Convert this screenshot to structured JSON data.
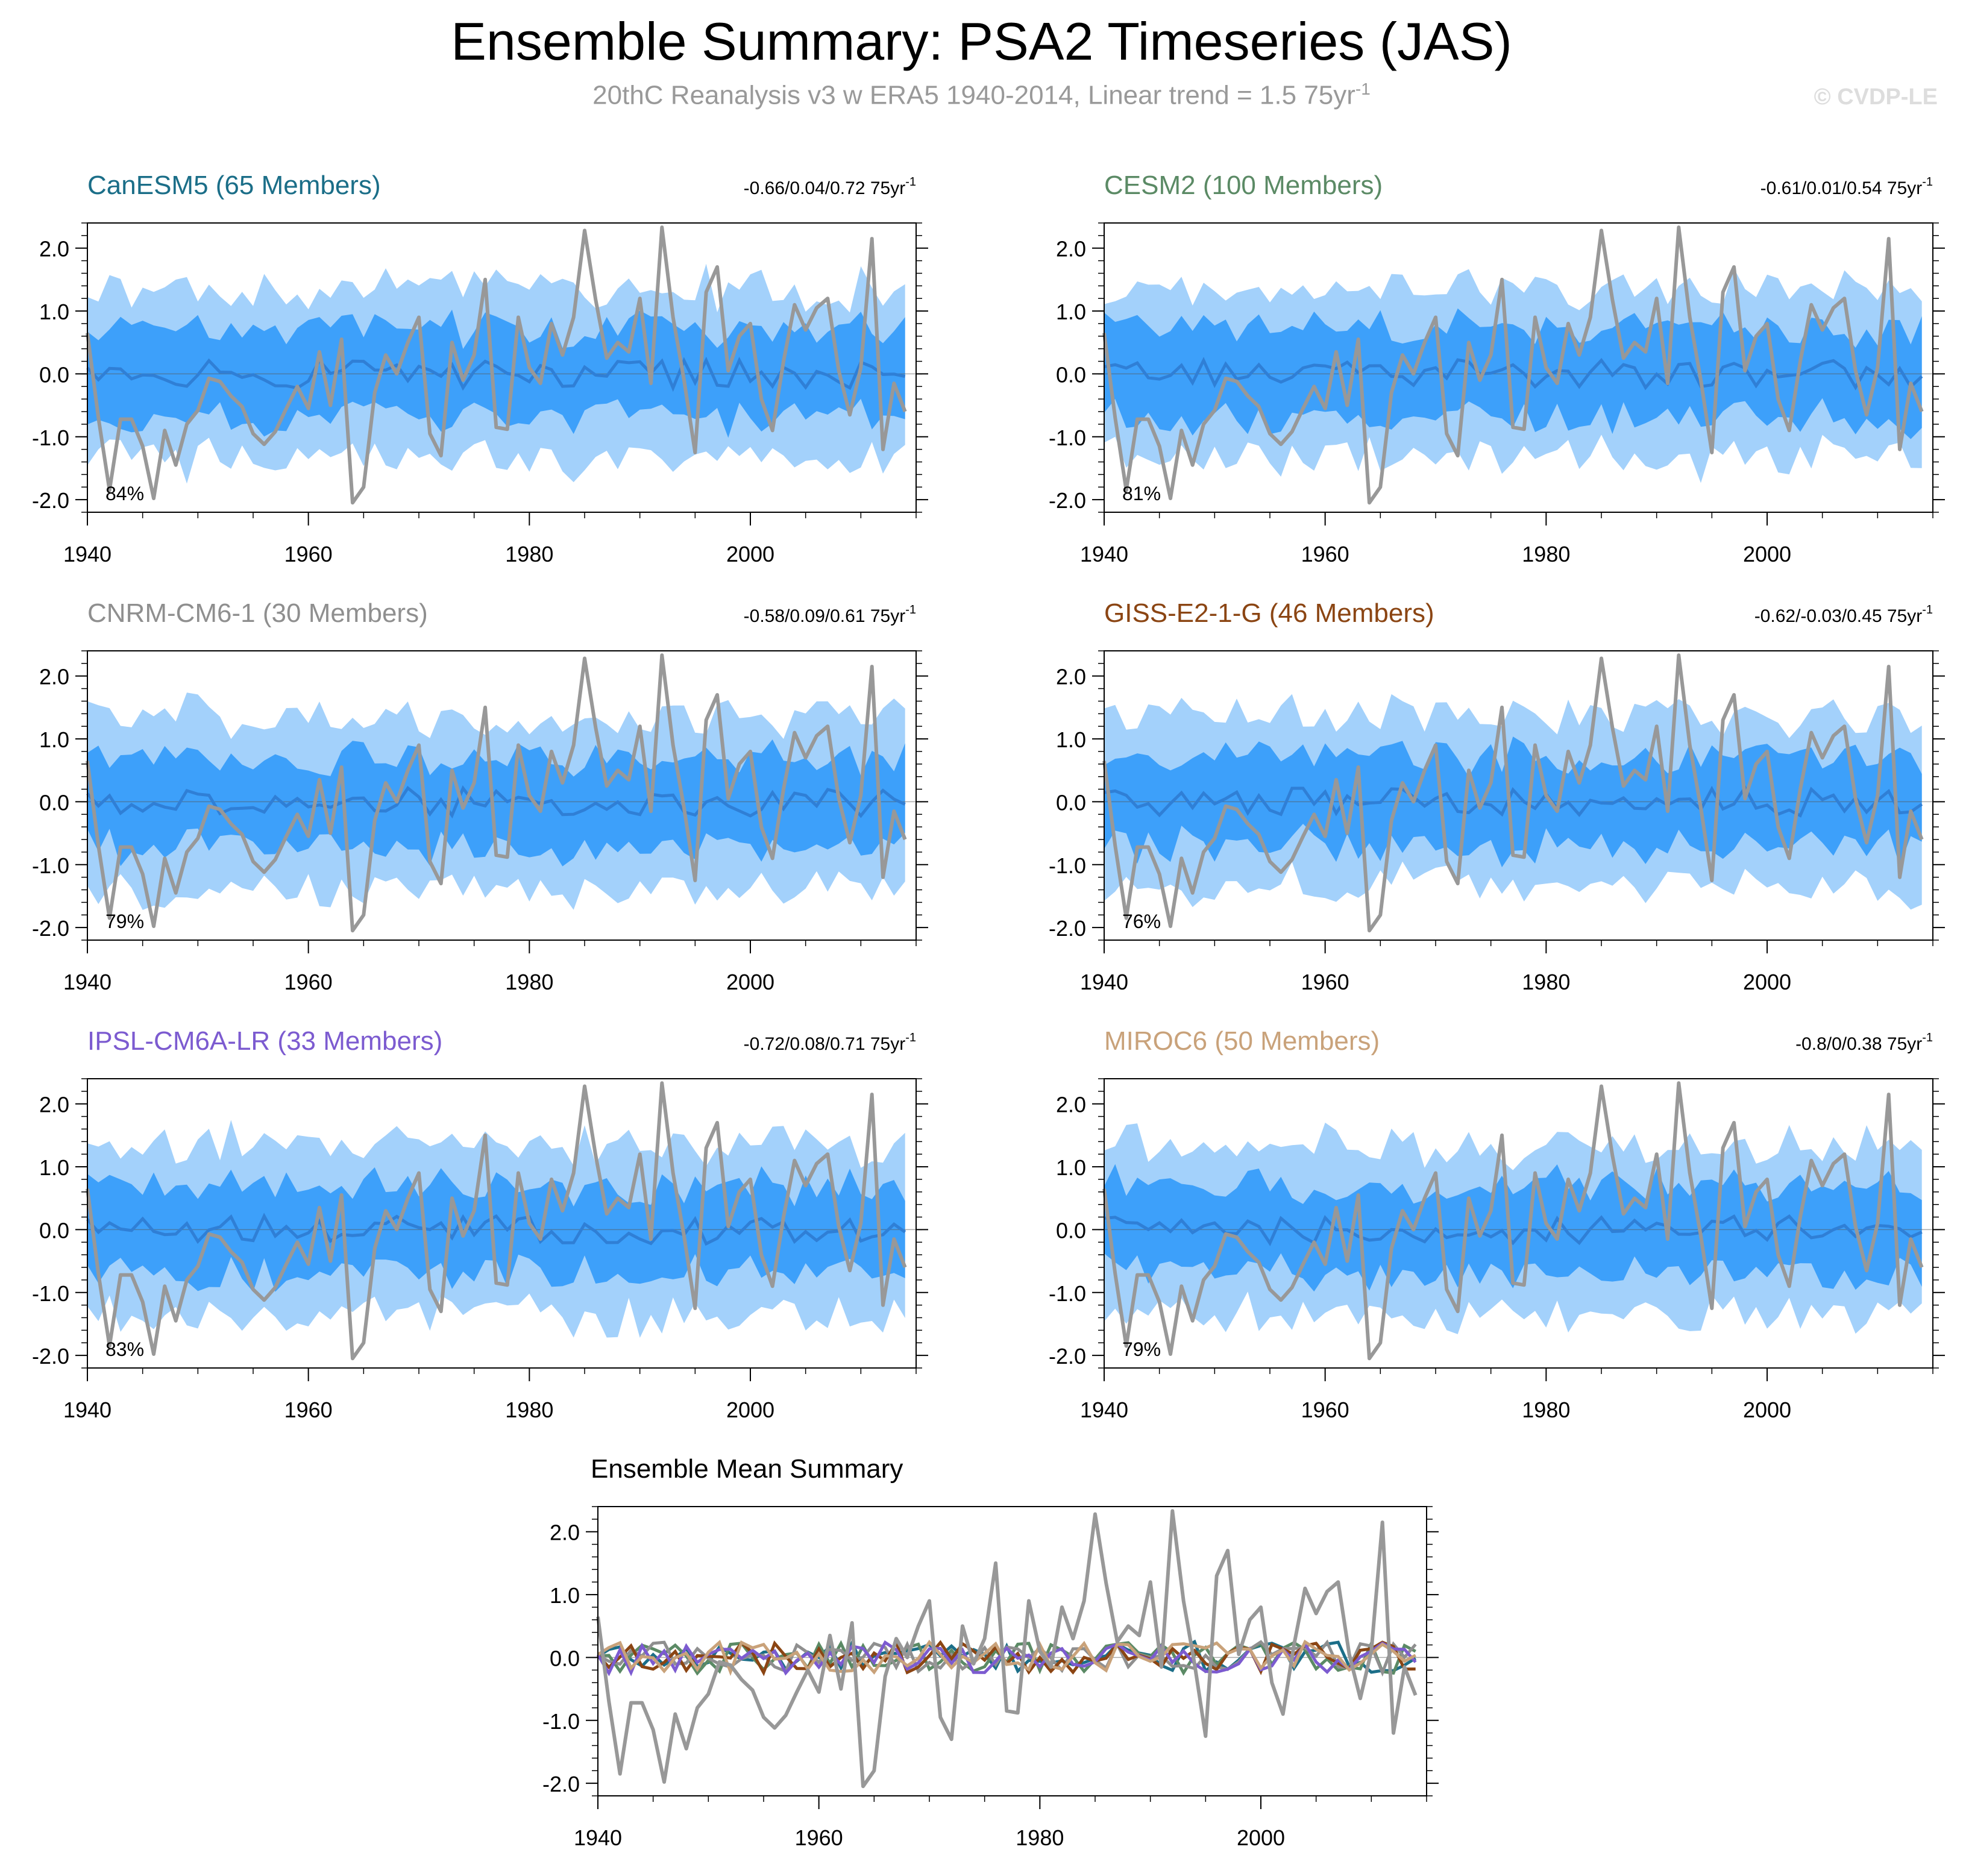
{
  "page": {
    "title": "Ensemble Summary: PSA2 Timeseries (JAS)",
    "subtitle_main": "20thC Reanalysis v3 w ERA5 1940-2014, Linear trend = 1.5 75yr",
    "subtitle_sup": "-1",
    "copyright": "© CVDP-LE"
  },
  "colors": {
    "outer_band": "#a3d1fb",
    "inner_band": "#3da0fa",
    "ensemble_mean": "#2f7fd6",
    "observations": "#989898",
    "axis": "#000000"
  },
  "chart_data": {
    "type": "line",
    "x_start": 1940,
    "x_end": 2014,
    "xlim": [
      1940,
      2015
    ],
    "ylim": [
      -2.2,
      2.4
    ],
    "x_ticks": [
      1940,
      1960,
      1980,
      2000
    ],
    "y_ticks": [
      2.0,
      1.0,
      0.0,
      -1.0,
      -2.0
    ],
    "y_tick_labels": [
      "2.0",
      "1.0",
      "0.0",
      "-1.0",
      "-2.0"
    ],
    "observations_name": "20thC Reanalysis v3 w ERA5",
    "observations": [
      0.65,
      -0.7,
      -1.85,
      -0.72,
      -0.72,
      -1.15,
      -1.98,
      -0.9,
      -1.45,
      -0.8,
      -0.58,
      -0.07,
      -0.12,
      -0.35,
      -0.52,
      -0.95,
      -1.12,
      -0.92,
      -0.55,
      -0.2,
      -0.55,
      0.35,
      -0.5,
      0.55,
      -2.05,
      -1.8,
      -0.3,
      0.3,
      0.0,
      0.5,
      0.9,
      -0.95,
      -1.3,
      0.5,
      -0.1,
      0.3,
      1.5,
      -0.85,
      -0.88,
      0.9,
      0.1,
      -0.15,
      0.8,
      0.3,
      0.9,
      2.28,
      1.18,
      0.25,
      0.5,
      0.35,
      1.2,
      -0.15,
      2.33,
      0.9,
      -0.1,
      -1.25,
      1.3,
      1.7,
      0.05,
      0.6,
      0.8,
      -0.4,
      -0.9,
      0.2,
      1.1,
      0.7,
      1.05,
      1.2,
      0.05,
      -0.65,
      0.1,
      2.15,
      -1.2,
      -0.15,
      -0.6
    ],
    "panels": [
      {
        "name": "CanESM5",
        "members_label": "CanESM5 (65 Members)",
        "title_color": "#1b6e88",
        "stats": "-0.66/0.04/0.72 75yr",
        "stats_sup": "-1",
        "percent": "84%"
      },
      {
        "name": "CESM2",
        "members_label": "CESM2 (100 Members)",
        "title_color": "#5b8a65",
        "stats": "-0.61/0.01/0.54 75yr",
        "stats_sup": "-1",
        "percent": "81%"
      },
      {
        "name": "CNRM-CM6-1",
        "members_label": "CNRM-CM6-1 (30 Members)",
        "title_color": "#8f8f8f",
        "stats": "-0.58/0.09/0.61 75yr",
        "stats_sup": "-1",
        "percent": "79%"
      },
      {
        "name": "GISS-E2-1-G",
        "members_label": "GISS-E2-1-G (46 Members)",
        "title_color": "#8b4513",
        "stats": "-0.62/-0.03/0.45 75yr",
        "stats_sup": "-1",
        "percent": "76%"
      },
      {
        "name": "IPSL-CM6A-LR",
        "members_label": "IPSL-CM6A-LR (33 Members)",
        "title_color": "#7c5bd0",
        "stats": "-0.72/0.08/0.71 75yr",
        "stats_sup": "-1",
        "percent": "83%"
      },
      {
        "name": "MIROC6",
        "members_label": "MIROC6 (50 Members)",
        "title_color": "#c9a27a",
        "stats": "-0.8/0/0.38 75yr",
        "stats_sup": "-1",
        "percent": "79%"
      }
    ],
    "band_estimates": {
      "description": "approximate ensemble spread read from shading",
      "outer_range": [
        -1.3,
        1.3
      ],
      "inner_range": [
        -0.75,
        0.75
      ]
    },
    "summary": {
      "title": "Ensemble Mean Summary",
      "series_names": [
        "20thC Reanalysis v3 w ERA5",
        "CanESM5",
        "CESM2",
        "CNRM-CM6-1",
        "GISS-E2-1-G",
        "IPSL-CM6A-LR",
        "MIROC6"
      ]
    }
  }
}
